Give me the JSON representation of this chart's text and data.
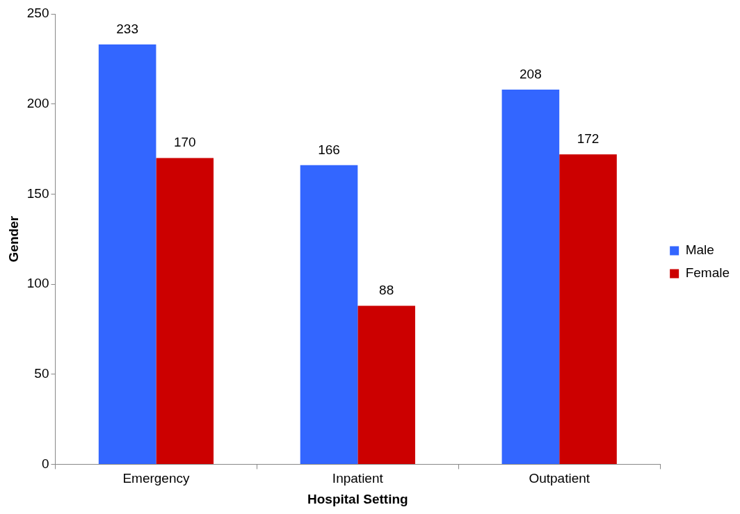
{
  "chart_data": {
    "type": "bar",
    "xlabel": "Hospital Setting",
    "ylabel": "Gender",
    "categories": [
      "Emergency",
      "Inpatient",
      "Outpatient"
    ],
    "series": [
      {
        "name": "Male",
        "color": "#3366ff",
        "values": [
          233,
          166,
          208
        ]
      },
      {
        "name": "Female",
        "color": "#cc0000",
        "values": [
          170,
          88,
          172
        ]
      }
    ],
    "ylim": [
      0,
      250
    ],
    "yticks": [
      0,
      50,
      100,
      150,
      200,
      250
    ],
    "grid": false,
    "legend": "right",
    "data_labels": true
  }
}
